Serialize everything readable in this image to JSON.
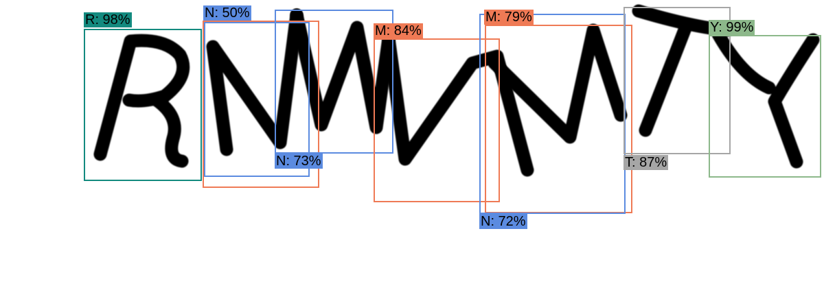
{
  "colors": {
    "teal": "#138a7f",
    "blue": "#5b8be0",
    "orange": "#ef7a55",
    "gray": "#a6a6a6",
    "green": "#8cb88a"
  },
  "detections": [
    {
      "id": "r-98",
      "label": "R: 98%",
      "letter": "R",
      "confidence": 98,
      "color": "teal"
    },
    {
      "id": "n-50",
      "label": "N: 50%",
      "letter": "N",
      "confidence": 50,
      "color": "blue"
    },
    {
      "id": "n-73",
      "label": "N: 73%",
      "letter": "N",
      "confidence": 73,
      "color": "blue"
    },
    {
      "id": "m-84",
      "label": "M: 84%",
      "letter": "M",
      "confidence": 84,
      "color": "orange"
    },
    {
      "id": "m-79",
      "label": "M: 79%",
      "letter": "M",
      "confidence": 79,
      "color": "orange"
    },
    {
      "id": "n-72",
      "label": "N: 72%",
      "letter": "N",
      "confidence": 72,
      "color": "blue"
    },
    {
      "id": "t-87",
      "label": "T: 87%",
      "letter": "T",
      "confidence": 87,
      "color": "gray"
    },
    {
      "id": "y-99",
      "label": "Y: 99%",
      "letter": "Y",
      "confidence": 99,
      "color": "green"
    }
  ]
}
